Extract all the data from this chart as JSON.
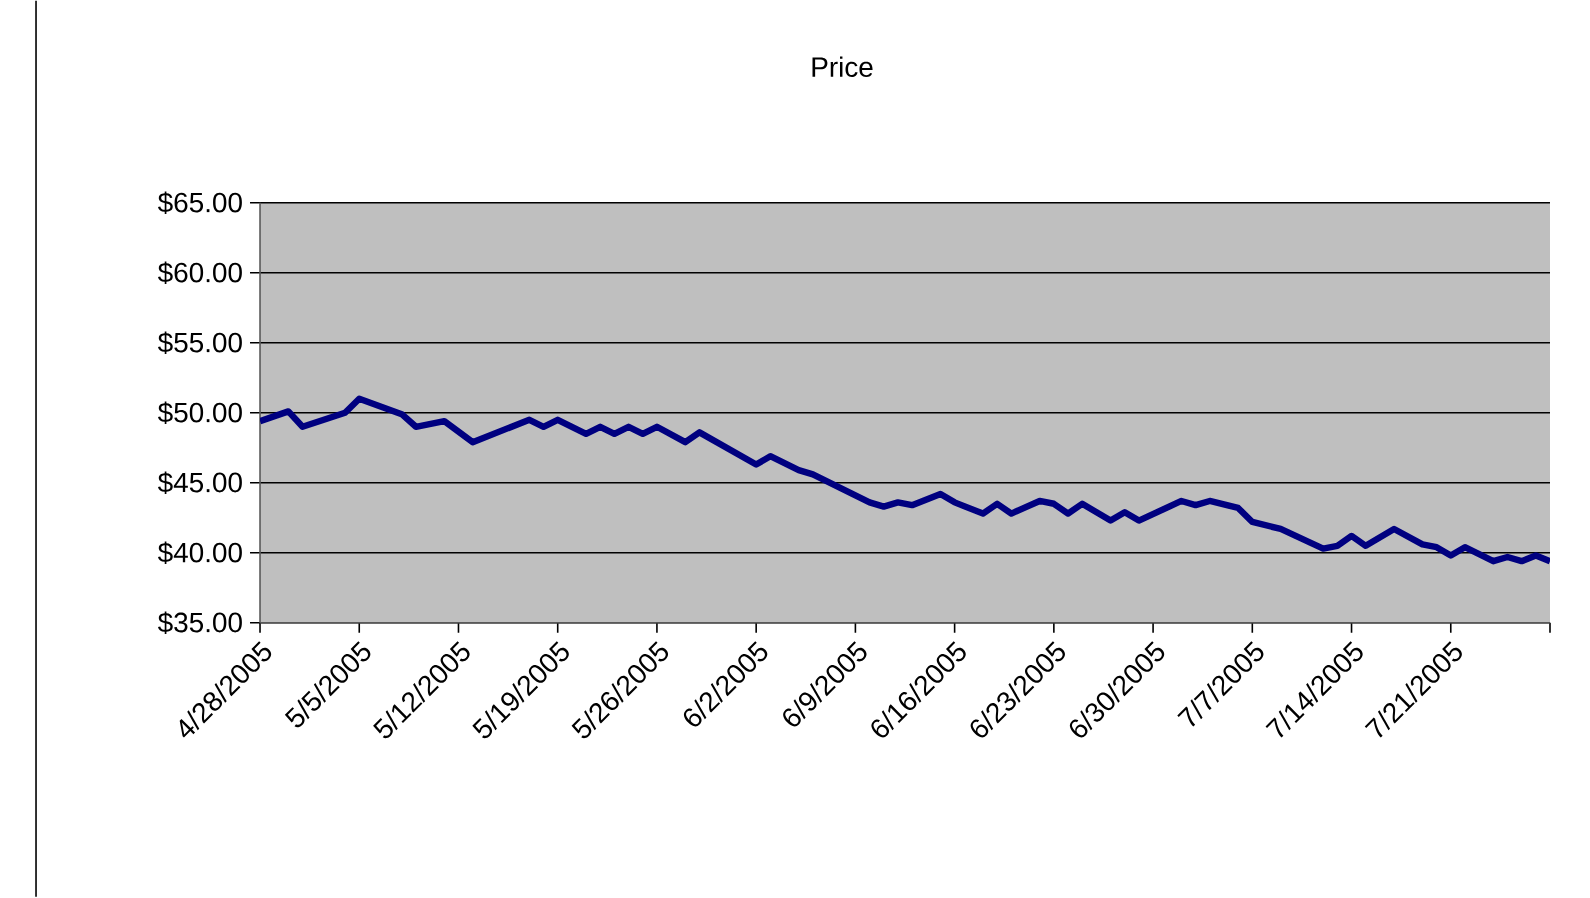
{
  "chart_data": {
    "type": "line",
    "title": "Price",
    "x": [
      "2005-04-28",
      "2005-04-30",
      "2005-05-01",
      "2005-05-04",
      "2005-05-05",
      "2005-05-08",
      "2005-05-09",
      "2005-05-11",
      "2005-05-13",
      "2005-05-17",
      "2005-05-18",
      "2005-05-19",
      "2005-05-21",
      "2005-05-22",
      "2005-05-23",
      "2005-05-24",
      "2005-05-25",
      "2005-05-26",
      "2005-05-28",
      "2005-05-29",
      "2005-06-02",
      "2005-06-03",
      "2005-06-05",
      "2005-06-06",
      "2005-06-10",
      "2005-06-11",
      "2005-06-12",
      "2005-06-13",
      "2005-06-15",
      "2005-06-16",
      "2005-06-18",
      "2005-06-19",
      "2005-06-20",
      "2005-06-22",
      "2005-06-23",
      "2005-06-24",
      "2005-06-25",
      "2005-06-27",
      "2005-06-28",
      "2005-06-29",
      "2005-07-02",
      "2005-07-03",
      "2005-07-04",
      "2005-07-06",
      "2005-07-07",
      "2005-07-09",
      "2005-07-12",
      "2005-07-13",
      "2005-07-14",
      "2005-07-15",
      "2005-07-17",
      "2005-07-19",
      "2005-07-20",
      "2005-07-21",
      "2005-07-22",
      "2005-07-24",
      "2005-07-25",
      "2005-07-26",
      "2005-07-27",
      "2005-07-28"
    ],
    "series": [
      {
        "color": "#000080",
        "values": [
          49.4,
          50.1,
          49.0,
          50.0,
          51.0,
          49.9,
          49.0,
          49.4,
          47.9,
          49.5,
          49.0,
          49.5,
          48.5,
          49.0,
          48.5,
          49.0,
          48.5,
          49.0,
          47.9,
          48.6,
          46.3,
          46.9,
          45.9,
          45.6,
          43.6,
          43.3,
          43.6,
          43.4,
          44.2,
          43.6,
          42.8,
          43.5,
          42.8,
          43.7,
          43.5,
          42.8,
          43.5,
          42.3,
          42.9,
          42.3,
          43.7,
          43.4,
          43.7,
          43.2,
          42.2,
          41.7,
          40.3,
          40.5,
          41.2,
          40.5,
          41.7,
          40.6,
          40.4,
          39.8,
          40.4,
          39.4,
          39.7,
          39.4,
          39.8,
          39.4
        ]
      }
    ],
    "xlim": [
      "2005-04-28",
      "2005-07-28"
    ],
    "xticks": [
      {
        "value": "2005-04-28",
        "label": "4/28/2005"
      },
      {
        "value": "2005-05-05",
        "label": "5/5/2005"
      },
      {
        "value": "2005-05-12",
        "label": "5/12/2005"
      },
      {
        "value": "2005-05-19",
        "label": "5/19/2005"
      },
      {
        "value": "2005-05-26",
        "label": "5/26/2005"
      },
      {
        "value": "2005-06-02",
        "label": "6/2/2005"
      },
      {
        "value": "2005-06-09",
        "label": "6/9/2005"
      },
      {
        "value": "2005-06-16",
        "label": "6/16/2005"
      },
      {
        "value": "2005-06-23",
        "label": "6/23/2005"
      },
      {
        "value": "2005-06-30",
        "label": "6/30/2005"
      },
      {
        "value": "2005-07-07",
        "label": "7/7/2005"
      },
      {
        "value": "2005-07-14",
        "label": "7/14/2005"
      },
      {
        "value": "2005-07-21",
        "label": "7/21/2005"
      },
      {
        "value": "2005-07-28",
        "label": null
      }
    ],
    "ylim": [
      35,
      65
    ],
    "yticks": [
      {
        "value": 35,
        "label": "$35.00"
      },
      {
        "value": 40,
        "label": "$40.00"
      },
      {
        "value": 45,
        "label": "$45.00"
      },
      {
        "value": 50,
        "label": "$50.00"
      },
      {
        "value": 55,
        "label": "$55.00"
      },
      {
        "value": 60,
        "label": "$60.00"
      },
      {
        "value": 65,
        "label": "$65.00"
      }
    ],
    "grid": "y",
    "line_style": "solid"
  }
}
